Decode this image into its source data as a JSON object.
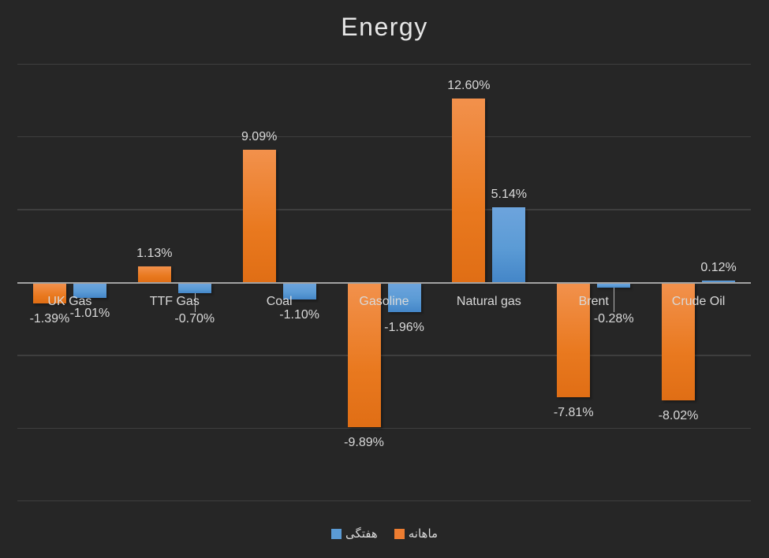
{
  "chart_data": {
    "type": "bar",
    "title": "Energy",
    "categories": [
      "UK Gas",
      "TTF Gas",
      "Coal",
      "Gasoline",
      "Natural gas",
      "Brent",
      "Crude Oil"
    ],
    "series": [
      {
        "name": "ماهانه",
        "role": "monthly",
        "color": "#ed7d31",
        "values": [
          -1.39,
          1.13,
          9.09,
          -9.89,
          12.6,
          -7.81,
          -8.02
        ],
        "data_labels": [
          "-1.39%",
          "1.13%",
          "9.09%",
          "-9.89%",
          "12.60%",
          "-7.81%",
          "-8.02%"
        ]
      },
      {
        "name": "هفتگی",
        "role": "weekly",
        "color": "#5b9bd5",
        "values": [
          -1.01,
          -0.7,
          -1.1,
          -1.96,
          5.14,
          -0.28,
          0.12
        ],
        "data_labels": [
          "-1.01%",
          "-0.70%",
          "-1.10%",
          "-1.96%",
          "5.14%",
          "-0.28%",
          "0.12%"
        ]
      }
    ],
    "ylim": [
      -15,
      15
    ],
    "gridline_step_pct": 5,
    "grid_on": true,
    "legend_position": "bottom",
    "legend_items": [
      {
        "label": "هفتگی",
        "color": "#5b9bd5",
        "role": "weekly"
      },
      {
        "label": "ماهانه",
        "color": "#ed7d31",
        "role": "monthly"
      }
    ],
    "colors": {
      "background": "#262626",
      "gridline": "#3e3e3e",
      "axis_line": "#a2a2a2",
      "text": "#d9d9d9",
      "title_text": "#e6e6e6"
    }
  }
}
